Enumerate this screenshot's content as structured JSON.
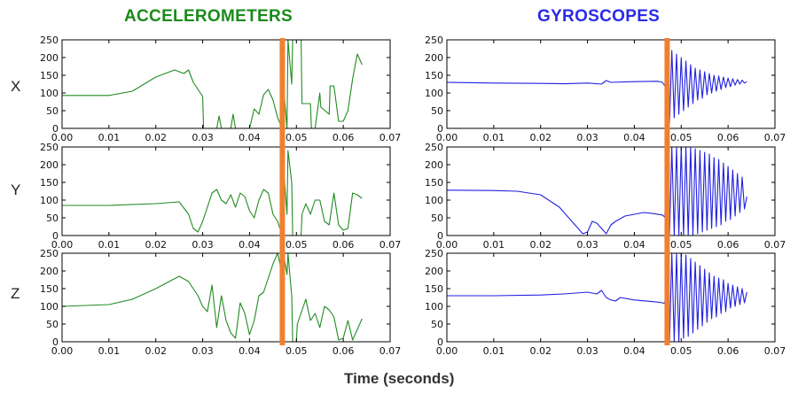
{
  "column_titles": {
    "accelerometers": "ACCELEROMETERS",
    "gyroscopes": "GYROSCOPES"
  },
  "row_labels": [
    "X",
    "Y",
    "Z"
  ],
  "x_axis_label": "Time (seconds)",
  "colors": {
    "accelerometers": "#228B22",
    "gyroscopes": "#2020e0",
    "event_marker": "#f08030",
    "accel_title": "#1a8a1a",
    "gyro_title": "#2a2ae8"
  },
  "chart_data": [
    {
      "type": "line",
      "sensor": "accelerometers",
      "axis": "X",
      "xlim": [
        0,
        0.07
      ],
      "ylim": [
        0,
        250
      ],
      "xticks": [
        "0.00",
        "0.01",
        "0.02",
        "0.03",
        "0.04",
        "0.05",
        "0.06",
        "0.07"
      ],
      "yticks": [
        "0",
        "50",
        "100",
        "150",
        "200",
        "250"
      ],
      "event_x": 0.047,
      "x": [
        0,
        0.01,
        0.015,
        0.02,
        0.024,
        0.026,
        0.027,
        0.028,
        0.029,
        0.03,
        0.0302,
        0.033,
        0.0335,
        0.034,
        0.036,
        0.0365,
        0.037,
        0.04,
        0.041,
        0.042,
        0.043,
        0.044,
        0.045,
        0.046,
        0.047,
        0.0472,
        0.048,
        0.0482,
        0.049,
        0.0492,
        0.051,
        0.0512,
        0.053,
        0.0532,
        0.054,
        0.055,
        0.0552,
        0.057,
        0.0572,
        0.058,
        0.059,
        0.06,
        0.061,
        0.062,
        0.063,
        0.064
      ],
      "values": [
        93,
        93,
        105,
        145,
        165,
        155,
        165,
        130,
        110,
        90,
        0,
        0,
        35,
        0,
        0,
        40,
        0,
        0,
        55,
        40,
        95,
        110,
        80,
        30,
        0,
        125,
        0,
        250,
        125,
        250,
        250,
        70,
        70,
        0,
        0,
        100,
        60,
        40,
        120,
        120,
        20,
        20,
        50,
        140,
        210,
        180
      ]
    },
    {
      "type": "line",
      "sensor": "accelerometers",
      "axis": "Y",
      "xlim": [
        0,
        0.07
      ],
      "ylim": [
        0,
        250
      ],
      "xticks": [
        "0.00",
        "0.01",
        "0.02",
        "0.03",
        "0.04",
        "0.05",
        "0.06",
        "0.07"
      ],
      "yticks": [
        "0",
        "50",
        "100",
        "150",
        "200",
        "250"
      ],
      "event_x": 0.047,
      "x": [
        0,
        0.01,
        0.02,
        0.025,
        0.027,
        0.028,
        0.029,
        0.03,
        0.031,
        0.032,
        0.033,
        0.034,
        0.035,
        0.036,
        0.037,
        0.038,
        0.039,
        0.04,
        0.041,
        0.042,
        0.043,
        0.044,
        0.045,
        0.046,
        0.047,
        0.0472,
        0.048,
        0.0482,
        0.049,
        0.0492,
        0.051,
        0.0512,
        0.052,
        0.053,
        0.054,
        0.055,
        0.056,
        0.057,
        0.058,
        0.059,
        0.06,
        0.061,
        0.062,
        0.063,
        0.064
      ],
      "values": [
        85,
        85,
        90,
        95,
        60,
        20,
        10,
        40,
        80,
        120,
        130,
        100,
        90,
        115,
        80,
        120,
        110,
        70,
        50,
        100,
        130,
        120,
        60,
        40,
        0,
        200,
        60,
        240,
        150,
        0,
        0,
        60,
        90,
        60,
        100,
        100,
        40,
        30,
        120,
        30,
        15,
        20,
        120,
        115,
        105
      ]
    },
    {
      "type": "line",
      "sensor": "accelerometers",
      "axis": "Z",
      "xlim": [
        0,
        0.07
      ],
      "ylim": [
        0,
        250
      ],
      "xticks": [
        "0.00",
        "0.01",
        "0.02",
        "0.03",
        "0.04",
        "0.05",
        "0.06",
        "0.07"
      ],
      "yticks": [
        "0",
        "50",
        "100",
        "150",
        "200",
        "250"
      ],
      "event_x": 0.047,
      "x": [
        0,
        0.01,
        0.015,
        0.02,
        0.025,
        0.027,
        0.028,
        0.029,
        0.03,
        0.031,
        0.032,
        0.033,
        0.034,
        0.035,
        0.036,
        0.037,
        0.038,
        0.039,
        0.04,
        0.041,
        0.042,
        0.043,
        0.044,
        0.045,
        0.046,
        0.0465,
        0.047,
        0.0472,
        0.048,
        0.0482,
        0.049,
        0.0492,
        0.05,
        0.0502,
        0.052,
        0.053,
        0.054,
        0.055,
        0.056,
        0.057,
        0.058,
        0.059,
        0.06,
        0.061,
        0.062,
        0.063,
        0.064
      ],
      "values": [
        100,
        105,
        120,
        150,
        185,
        170,
        150,
        130,
        100,
        85,
        160,
        40,
        130,
        60,
        25,
        10,
        110,
        80,
        20,
        60,
        130,
        140,
        180,
        220,
        250,
        220,
        160,
        250,
        190,
        250,
        130,
        0,
        0,
        50,
        120,
        60,
        80,
        40,
        100,
        90,
        70,
        5,
        10,
        60,
        5,
        35,
        65
      ]
    },
    {
      "type": "line",
      "sensor": "gyroscopes",
      "axis": "X",
      "xlim": [
        0,
        0.07
      ],
      "ylim": [
        0,
        250
      ],
      "xticks": [
        "0.00",
        "0.01",
        "0.02",
        "0.03",
        "0.04",
        "0.05",
        "0.06",
        "0.07"
      ],
      "yticks": [
        "0",
        "50",
        "100",
        "150",
        "200",
        "250"
      ],
      "event_x": 0.047,
      "x": [
        0,
        0.01,
        0.02,
        0.025,
        0.03,
        0.033,
        0.034,
        0.035,
        0.04,
        0.045,
        0.046,
        0.0465,
        0.047,
        0.0475,
        0.048,
        0.0485,
        0.049,
        0.0495,
        0.05,
        0.0505,
        0.051,
        0.0515,
        0.052,
        0.0525,
        0.053,
        0.0535,
        0.054,
        0.0545,
        0.055,
        0.0555,
        0.056,
        0.0565,
        0.057,
        0.0575,
        0.058,
        0.0585,
        0.059,
        0.0595,
        0.06,
        0.0605,
        0.061,
        0.0615,
        0.062,
        0.0625,
        0.063,
        0.0635,
        0.064
      ],
      "values": [
        130,
        128,
        127,
        126,
        128,
        125,
        135,
        130,
        132,
        133,
        130,
        120,
        230,
        15,
        220,
        30,
        210,
        40,
        200,
        50,
        190,
        60,
        180,
        70,
        170,
        80,
        165,
        85,
        160,
        95,
        155,
        100,
        150,
        105,
        148,
        110,
        145,
        115,
        142,
        118,
        140,
        122,
        138,
        125,
        136,
        128,
        132
      ]
    },
    {
      "type": "line",
      "sensor": "gyroscopes",
      "axis": "Y",
      "xlim": [
        0,
        0.07
      ],
      "ylim": [
        0,
        250
      ],
      "xticks": [
        "0.00",
        "0.01",
        "0.02",
        "0.03",
        "0.04",
        "0.05",
        "0.06",
        "0.07"
      ],
      "yticks": [
        "0",
        "50",
        "100",
        "150",
        "200",
        "250"
      ],
      "event_x": 0.047,
      "x": [
        0,
        0.01,
        0.015,
        0.02,
        0.024,
        0.027,
        0.029,
        0.03,
        0.031,
        0.032,
        0.033,
        0.034,
        0.035,
        0.036,
        0.038,
        0.04,
        0.042,
        0.044,
        0.046,
        0.0465,
        0.047,
        0.0475,
        0.048,
        0.0485,
        0.049,
        0.0495,
        0.05,
        0.0505,
        0.051,
        0.0515,
        0.052,
        0.0525,
        0.053,
        0.0535,
        0.054,
        0.0545,
        0.055,
        0.0555,
        0.056,
        0.0565,
        0.057,
        0.0575,
        0.058,
        0.0585,
        0.059,
        0.0595,
        0.06,
        0.0605,
        0.061,
        0.0615,
        0.062,
        0.0625,
        0.063,
        0.0635,
        0.064
      ],
      "values": [
        128,
        127,
        125,
        115,
        80,
        35,
        5,
        10,
        40,
        35,
        20,
        5,
        30,
        40,
        55,
        60,
        65,
        62,
        58,
        52,
        250,
        0,
        250,
        0,
        250,
        0,
        250,
        0,
        250,
        0,
        250,
        0,
        245,
        5,
        240,
        10,
        235,
        15,
        230,
        20,
        220,
        25,
        215,
        30,
        205,
        40,
        195,
        45,
        185,
        55,
        175,
        65,
        165,
        75,
        110
      ]
    },
    {
      "type": "line",
      "sensor": "gyroscopes",
      "axis": "Z",
      "xlim": [
        0,
        0.07
      ],
      "ylim": [
        0,
        250
      ],
      "xticks": [
        "0.00",
        "0.01",
        "0.02",
        "0.03",
        "0.04",
        "0.05",
        "0.06",
        "0.07"
      ],
      "yticks": [
        "0",
        "50",
        "100",
        "150",
        "200",
        "250"
      ],
      "event_x": 0.047,
      "x": [
        0,
        0.01,
        0.02,
        0.025,
        0.03,
        0.032,
        0.033,
        0.034,
        0.035,
        0.036,
        0.037,
        0.04,
        0.045,
        0.046,
        0.0465,
        0.047,
        0.0475,
        0.048,
        0.0485,
        0.049,
        0.0495,
        0.05,
        0.0505,
        0.051,
        0.0515,
        0.052,
        0.0525,
        0.053,
        0.0535,
        0.054,
        0.0545,
        0.055,
        0.0555,
        0.056,
        0.0565,
        0.057,
        0.0575,
        0.058,
        0.0585,
        0.059,
        0.0595,
        0.06,
        0.0605,
        0.061,
        0.0615,
        0.062,
        0.0625,
        0.063,
        0.0635,
        0.064
      ],
      "values": [
        130,
        130,
        132,
        135,
        140,
        135,
        145,
        125,
        118,
        115,
        125,
        118,
        112,
        110,
        108,
        250,
        0,
        250,
        0,
        250,
        0,
        250,
        10,
        245,
        15,
        235,
        25,
        225,
        35,
        215,
        45,
        205,
        55,
        195,
        65,
        185,
        70,
        180,
        80,
        175,
        85,
        165,
        95,
        160,
        100,
        155,
        105,
        150,
        110,
        140
      ]
    }
  ]
}
